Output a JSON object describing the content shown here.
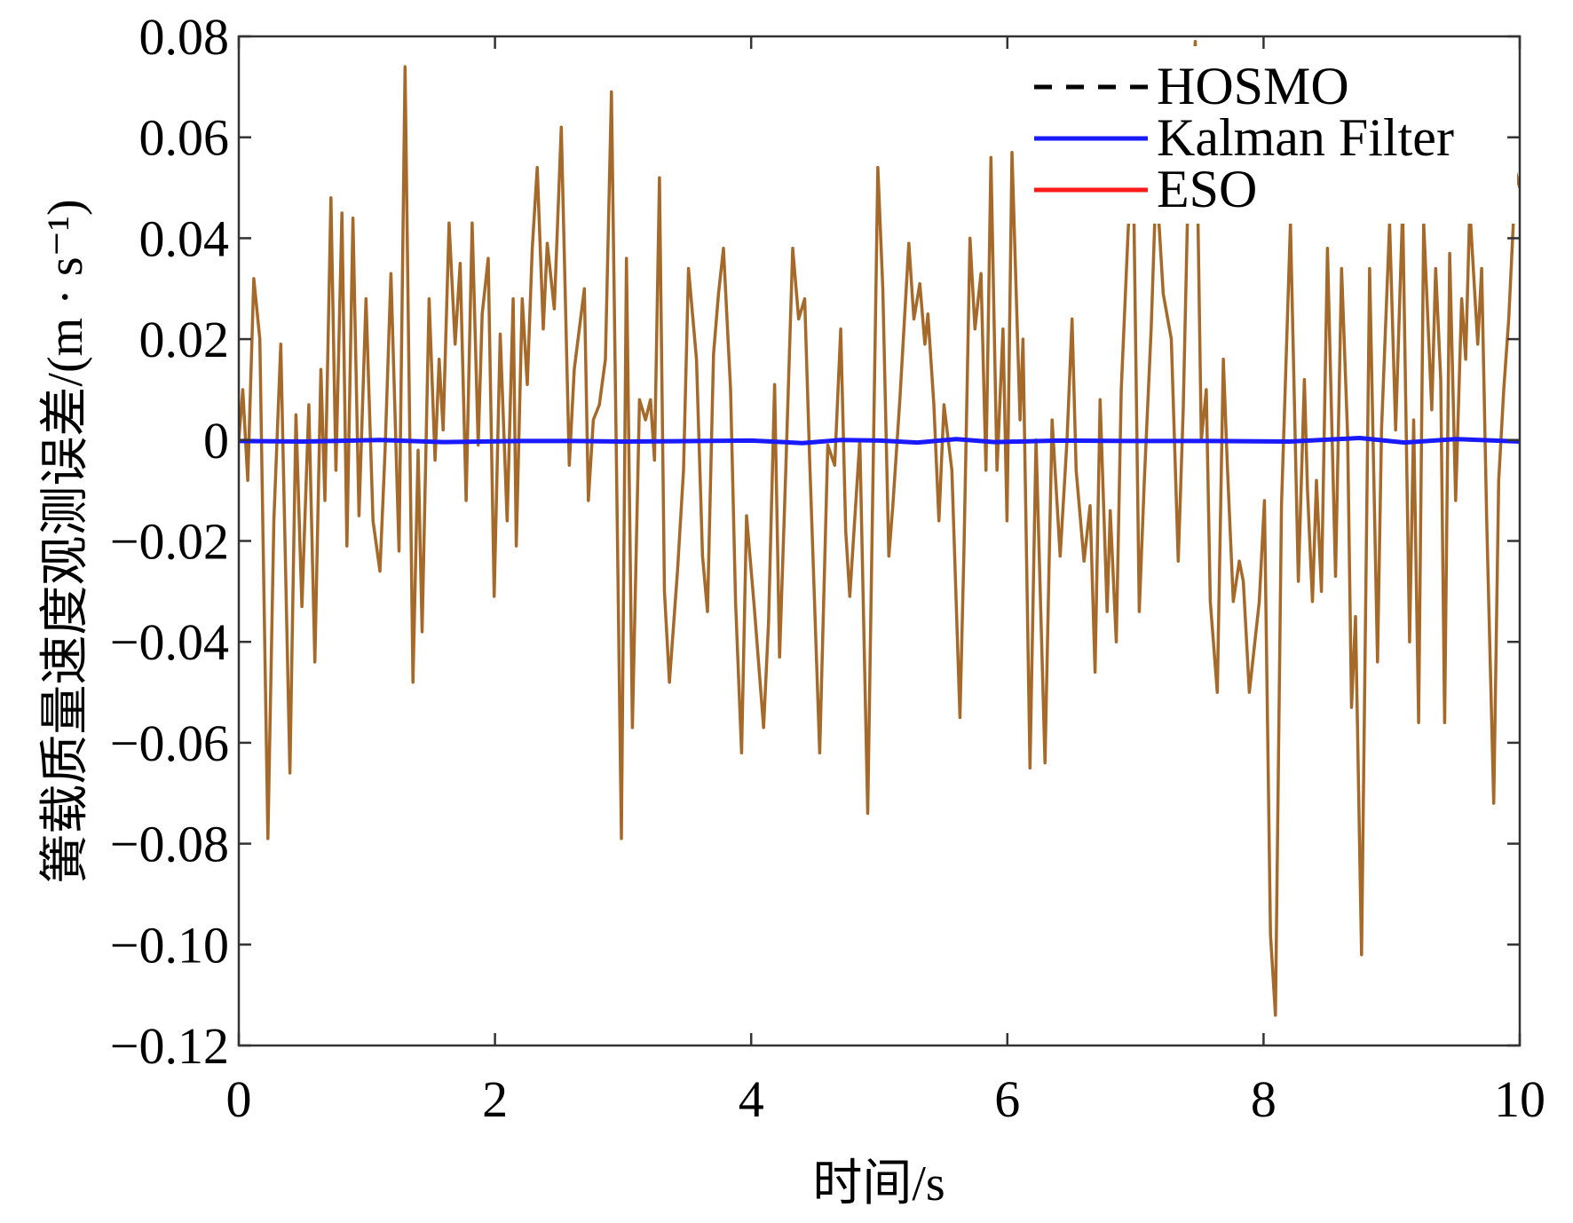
{
  "chart_data": {
    "type": "line",
    "title": "",
    "xlabel": "时间/s",
    "ylabel": "簧载质量速度观测误差/(m · s⁻¹)",
    "xlim": [
      0,
      10
    ],
    "ylim": [
      -0.12,
      0.08
    ],
    "xticks": [
      0,
      2,
      4,
      6,
      8,
      10
    ],
    "xtick_labels": [
      "0",
      "2",
      "4",
      "6",
      "8",
      "10"
    ],
    "yticks": [
      0.08,
      0.06,
      0.04,
      0.02,
      0,
      -0.02,
      -0.04,
      -0.06,
      -0.08,
      -0.1,
      -0.12
    ],
    "ytick_labels": [
      "0.08",
      "0.06",
      "0.04",
      "0.02",
      "0",
      "−0.02",
      "−0.04",
      "−0.06",
      "−0.08",
      "−0.10",
      "−0.12"
    ],
    "grid": false,
    "legend_position": "top-right",
    "legend": [
      {
        "name": "HOSMO",
        "color": "#000000",
        "style": "dashed"
      },
      {
        "name": "Kalman Filter",
        "color": "#1a1aff",
        "style": "solid"
      },
      {
        "name": "ESO",
        "color": "#ff1a1a",
        "style": "solid"
      }
    ],
    "series": [
      {
        "id": "unlabeled-brown",
        "color": "#a5692a",
        "points": [
          [
            0,
            0
          ],
          [
            0.031,
            0.01
          ],
          [
            0.07,
            -0.008
          ],
          [
            0.117,
            0.032
          ],
          [
            0.164,
            0.02
          ],
          [
            0.227,
            -0.079
          ],
          [
            0.274,
            -0.016
          ],
          [
            0.328,
            0.019
          ],
          [
            0.399,
            -0.066
          ],
          [
            0.446,
            0.005
          ],
          [
            0.493,
            -0.033
          ],
          [
            0.547,
            0.007
          ],
          [
            0.594,
            -0.044
          ],
          [
            0.641,
            0.014
          ],
          [
            0.672,
            -0.012
          ],
          [
            0.719,
            0.048
          ],
          [
            0.758,
            -0.006
          ],
          [
            0.805,
            0.045
          ],
          [
            0.844,
            -0.021
          ],
          [
            0.891,
            0.044
          ],
          [
            0.938,
            -0.015
          ],
          [
            0.993,
            0.028
          ],
          [
            1.048,
            -0.016
          ],
          [
            1.102,
            -0.026
          ],
          [
            1.142,
            -0.002
          ],
          [
            1.188,
            0.033
          ],
          [
            1.251,
            -0.022
          ],
          [
            1.298,
            0.074
          ],
          [
            1.36,
            -0.048
          ],
          [
            1.4,
            -0.002
          ],
          [
            1.431,
            -0.038
          ],
          [
            1.486,
            0.028
          ],
          [
            1.532,
            -0.004
          ],
          [
            1.564,
            0.016
          ],
          [
            1.595,
            0.002
          ],
          [
            1.642,
            0.043
          ],
          [
            1.689,
            0.019
          ],
          [
            1.728,
            0.035
          ],
          [
            1.775,
            -0.012
          ],
          [
            1.822,
            0.043
          ],
          [
            1.869,
            -0.001
          ],
          [
            1.9,
            0.025
          ],
          [
            1.947,
            0.036
          ],
          [
            1.994,
            -0.031
          ],
          [
            2.041,
            0.021
          ],
          [
            2.095,
            -0.016
          ],
          [
            2.142,
            0.028
          ],
          [
            2.166,
            -0.021
          ],
          [
            2.213,
            0.028
          ],
          [
            2.252,
            0.011
          ],
          [
            2.291,
            0.038
          ],
          [
            2.33,
            0.054
          ],
          [
            2.377,
            0.022
          ],
          [
            2.408,
            0.039
          ],
          [
            2.463,
            0.026
          ],
          [
            2.518,
            0.062
          ],
          [
            2.58,
            -0.005
          ],
          [
            2.619,
            0.014
          ],
          [
            2.698,
            0.03
          ],
          [
            2.729,
            -0.012
          ],
          [
            2.768,
            0.004
          ],
          [
            2.815,
            0.007
          ],
          [
            2.862,
            0.016
          ],
          [
            2.909,
            0.069
          ],
          [
            2.948,
            -0.004
          ],
          [
            2.987,
            -0.079
          ],
          [
            3.026,
            0.036
          ],
          [
            3.073,
            -0.057
          ],
          [
            3.128,
            0.008
          ],
          [
            3.175,
            0.004
          ],
          [
            3.214,
            0.008
          ],
          [
            3.245,
            -0.004
          ],
          [
            3.284,
            0.052
          ],
          [
            3.323,
            -0.03
          ],
          [
            3.362,
            -0.048
          ],
          [
            3.425,
            -0.026
          ],
          [
            3.472,
            -0.006
          ],
          [
            3.511,
            0.034
          ],
          [
            3.573,
            0.016
          ],
          [
            3.62,
            -0.023
          ],
          [
            3.659,
            -0.034
          ],
          [
            3.706,
            0.017
          ],
          [
            3.745,
            0.029
          ],
          [
            3.784,
            0.038
          ],
          [
            3.839,
            0.01
          ],
          [
            3.878,
            -0.032
          ],
          [
            3.925,
            -0.062
          ],
          [
            3.964,
            -0.015
          ],
          [
            4.027,
            -0.034
          ],
          [
            4.097,
            -0.057
          ],
          [
            4.136,
            -0.036
          ],
          [
            4.183,
            0.011
          ],
          [
            4.222,
            -0.043
          ],
          [
            4.269,
            -0.007
          ],
          [
            4.324,
            0.038
          ],
          [
            4.371,
            0.024
          ],
          [
            4.418,
            0.028
          ],
          [
            4.457,
            -0.004
          ],
          [
            4.535,
            -0.062
          ],
          [
            4.598,
            -0.001
          ],
          [
            4.652,
            -0.005
          ],
          [
            4.699,
            0.022
          ],
          [
            4.738,
            -0.018
          ],
          [
            4.77,
            -0.031
          ],
          [
            4.848,
            0
          ],
          [
            4.91,
            -0.074
          ],
          [
            4.989,
            0.054
          ],
          [
            5.028,
            0.03
          ],
          [
            5.075,
            -0.023
          ],
          [
            5.106,
            -0.013
          ],
          [
            5.161,
            0.008
          ],
          [
            5.231,
            0.039
          ],
          [
            5.27,
            0.024
          ],
          [
            5.317,
            0.031
          ],
          [
            5.356,
            0.019
          ],
          [
            5.38,
            0.025
          ],
          [
            5.426,
            0.007
          ],
          [
            5.466,
            -0.016
          ],
          [
            5.505,
            0.007
          ],
          [
            5.567,
            -0.006
          ],
          [
            5.63,
            -0.055
          ],
          [
            5.661,
            -0.022
          ],
          [
            5.708,
            0.04
          ],
          [
            5.747,
            0.022
          ],
          [
            5.794,
            0.033
          ],
          [
            5.833,
            -0.006
          ],
          [
            5.872,
            0.056
          ],
          [
            5.919,
            -0.006
          ],
          [
            5.966,
            0.022
          ],
          [
            5.997,
            -0.016
          ],
          [
            6.036,
            0.057
          ],
          [
            6.099,
            0.004
          ],
          [
            6.122,
            0.02
          ],
          [
            6.177,
            -0.065
          ],
          [
            6.224,
            0
          ],
          [
            6.294,
            -0.064
          ],
          [
            6.349,
            0.004
          ],
          [
            6.412,
            -0.023
          ],
          [
            6.466,
            0
          ],
          [
            6.505,
            0.024
          ],
          [
            6.537,
            -0.006
          ],
          [
            6.599,
            -0.024
          ],
          [
            6.646,
            -0.013
          ],
          [
            6.685,
            -0.046
          ],
          [
            6.724,
            0.008
          ],
          [
            6.779,
            -0.034
          ],
          [
            6.803,
            -0.014
          ],
          [
            6.85,
            -0.04
          ],
          [
            6.889,
            0.01
          ],
          [
            6.944,
            0.042
          ],
          [
            6.983,
            0.055
          ],
          [
            7.03,
            -0.034
          ],
          [
            7.069,
            -0.008
          ],
          [
            7.123,
            0.022
          ],
          [
            7.162,
            0.052
          ],
          [
            7.217,
            0.029
          ],
          [
            7.28,
            0.02
          ],
          [
            7.334,
            -0.024
          ],
          [
            7.373,
            0.006
          ],
          [
            7.413,
            0.052
          ],
          [
            7.467,
            0.079
          ],
          [
            7.514,
            0
          ],
          [
            7.553,
            0.01
          ],
          [
            7.584,
            -0.032
          ],
          [
            7.639,
            -0.05
          ],
          [
            7.686,
            0.016
          ],
          [
            7.717,
            -0.005
          ],
          [
            7.764,
            -0.032
          ],
          [
            7.811,
            -0.024
          ],
          [
            7.842,
            -0.028
          ],
          [
            7.889,
            -0.05
          ],
          [
            7.967,
            -0.032
          ],
          [
            8.007,
            -0.012
          ],
          [
            8.054,
            -0.098
          ],
          [
            8.093,
            -0.114
          ],
          [
            8.14,
            -0.013
          ],
          [
            8.21,
            0.043
          ],
          [
            8.272,
            -0.028
          ],
          [
            8.319,
            0.012
          ],
          [
            8.343,
            -0.01
          ],
          [
            8.382,
            -0.032
          ],
          [
            8.413,
            -0.008
          ],
          [
            8.452,
            -0.03
          ],
          [
            8.499,
            0.038
          ],
          [
            8.562,
            -0.027
          ],
          [
            8.609,
            0.034
          ],
          [
            8.656,
            0.001
          ],
          [
            8.687,
            -0.053
          ],
          [
            8.718,
            -0.035
          ],
          [
            8.765,
            -0.102
          ],
          [
            8.828,
            0.034
          ],
          [
            8.89,
            -0.044
          ],
          [
            8.921,
            0.002
          ],
          [
            8.984,
            0.043
          ],
          [
            9.031,
            0.002
          ],
          [
            9.086,
            0.046
          ],
          [
            9.14,
            -0.04
          ],
          [
            9.172,
            0.004
          ],
          [
            9.211,
            -0.056
          ],
          [
            9.25,
            0.043
          ],
          [
            9.313,
            0.006
          ],
          [
            9.344,
            0.034
          ],
          [
            9.383,
            0.012
          ],
          [
            9.414,
            -0.056
          ],
          [
            9.453,
            0.037
          ],
          [
            9.5,
            -0.012
          ],
          [
            9.547,
            0.028
          ],
          [
            9.578,
            0.016
          ],
          [
            9.61,
            0.046
          ],
          [
            9.672,
            0.019
          ],
          [
            9.703,
            0.034
          ],
          [
            9.742,
            -0.016
          ],
          [
            9.797,
            -0.072
          ],
          [
            9.836,
            -0.008
          ],
          [
            9.875,
            0.01
          ],
          [
            9.914,
            0.024
          ],
          [
            9.969,
            0.053
          ],
          [
            10,
            0.05
          ]
        ]
      },
      {
        "id": "kalman-filter",
        "color": "#1a1aff",
        "points": [
          [
            0,
            -0.0002
          ],
          [
            0.5,
            -0.0003
          ],
          [
            1.1,
            0
          ],
          [
            1.6,
            -0.0004
          ],
          [
            2.2,
            -0.0002
          ],
          [
            2.6,
            -0.0002
          ],
          [
            3.0,
            -0.0003
          ],
          [
            3.6,
            -0.0002
          ],
          [
            4.0,
            -0.0001
          ],
          [
            4.4,
            -0.0006
          ],
          [
            4.7,
            0
          ],
          [
            5.0,
            -0.0001
          ],
          [
            5.3,
            -0.0005
          ],
          [
            5.6,
            0.0002
          ],
          [
            5.9,
            -0.0004
          ],
          [
            6.4,
            -0.0001
          ],
          [
            7.0,
            -0.0002
          ],
          [
            7.6,
            -0.0002
          ],
          [
            8.2,
            -0.0003
          ],
          [
            8.75,
            0.0004
          ],
          [
            9.1,
            -0.0005
          ],
          [
            9.5,
            0.0002
          ],
          [
            10,
            -0.0003
          ]
        ]
      }
    ]
  }
}
